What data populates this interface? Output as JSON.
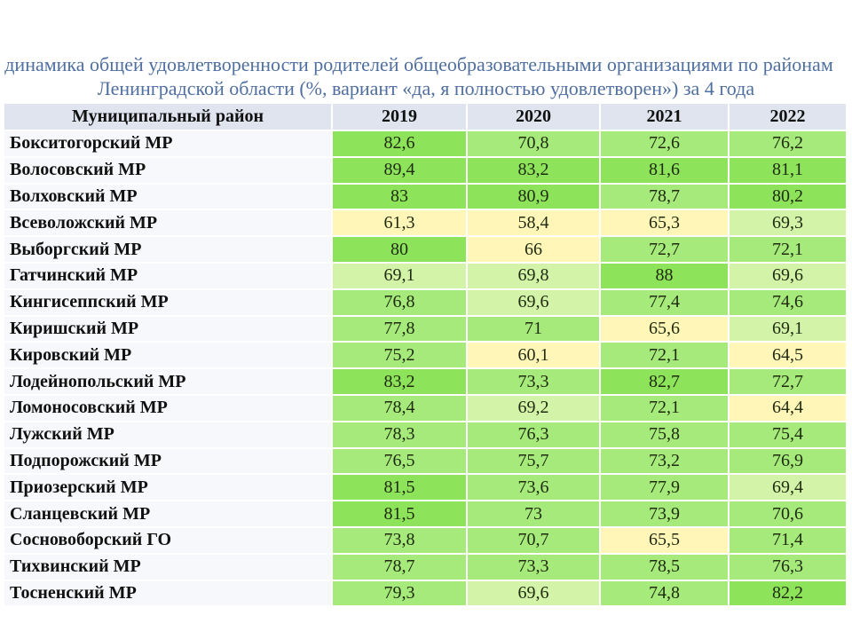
{
  "title_line1": "динамика общей удовлетворенности родителей общеобразовательными организациями по районам",
  "title_line2": "Ленинградской области  (%, вариант «да, я полностью удовлетворен») за 4 года",
  "columns": [
    "Муниципальный район",
    "2019",
    "2020",
    "2021",
    "2022"
  ],
  "rows": [
    {
      "name": "Бокситогорский МР",
      "values": [
        "82,6",
        "70,8",
        "72,6",
        "76,2"
      ]
    },
    {
      "name": "Волосовский МР",
      "values": [
        "89,4",
        "83,2",
        "81,6",
        "81,1"
      ]
    },
    {
      "name": "Волховский МР",
      "values": [
        "83",
        "80,9",
        "78,7",
        "80,2"
      ]
    },
    {
      "name": "Всеволожский МР",
      "values": [
        "61,3",
        "58,4",
        "65,3",
        "69,3"
      ]
    },
    {
      "name": "Выборгский МР",
      "values": [
        "80",
        "66",
        "72,7",
        "72,1"
      ]
    },
    {
      "name": "Гатчинский МР",
      "values": [
        "69,1",
        "69,8",
        "88",
        "69,6"
      ]
    },
    {
      "name": "Кингисеппский МР",
      "values": [
        "76,8",
        "69,6",
        "77,4",
        "74,6"
      ]
    },
    {
      "name": "Киришский МР",
      "values": [
        "77,8",
        "71",
        "65,6",
        "69,1"
      ]
    },
    {
      "name": "Кировский МР",
      "values": [
        "75,2",
        "60,1",
        "72,1",
        "64,5"
      ]
    },
    {
      "name": "Лодейнопольский МР",
      "values": [
        "83,2",
        "73,3",
        "82,7",
        "72,7"
      ]
    },
    {
      "name": "Ломоносовский МР",
      "values": [
        "78,4",
        "69,2",
        "72,1",
        "64,4"
      ]
    },
    {
      "name": "Лужский МР",
      "values": [
        "78,3",
        "76,3",
        "75,8",
        "75,4"
      ]
    },
    {
      "name": "Подпорожский МР",
      "values": [
        "76,5",
        "75,7",
        "73,2",
        "76,9"
      ]
    },
    {
      "name": "Приозерский МР",
      "values": [
        "81,5",
        "73,6",
        "77,9",
        "69,4"
      ]
    },
    {
      "name": "Сланцевский МР",
      "values": [
        "81,5",
        "73",
        "73,9",
        "70,6"
      ]
    },
    {
      "name": "Сосновоборский ГО",
      "values": [
        "73,8",
        "70,7",
        "65,5",
        "71,4"
      ]
    },
    {
      "name": "Тихвинский МР",
      "values": [
        "78,7",
        "73,3",
        "78,5",
        "76,3"
      ]
    },
    {
      "name": "Тосненский МР",
      "values": [
        "79,3",
        "69,6",
        "74,8",
        "82,2"
      ]
    }
  ],
  "colors": {
    "title": "#4f6fa0",
    "low": "#fff6b8",
    "mid": "#d3f4a8",
    "high": "#a5ea7a",
    "top": "#8de35a"
  }
}
